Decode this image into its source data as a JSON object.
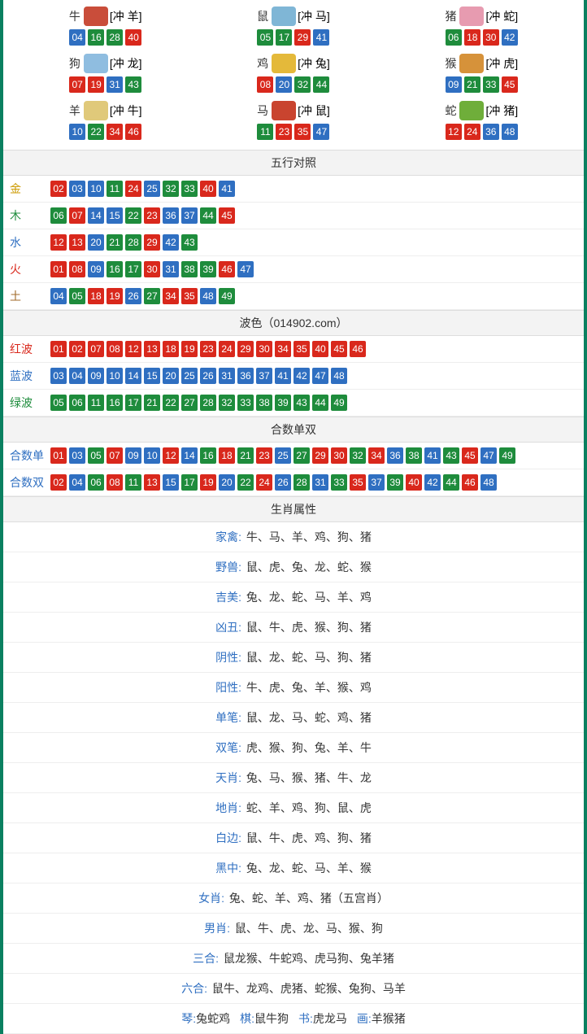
{
  "colors": {
    "border": "#0a8060",
    "red": "#d9281c",
    "blue": "#2f6fc1",
    "green": "#1e8c3c",
    "header_bg": "#f3f3f3"
  },
  "ball_color_map": {
    "01": "red",
    "02": "red",
    "07": "red",
    "08": "red",
    "12": "red",
    "13": "red",
    "18": "red",
    "19": "red",
    "23": "red",
    "24": "red",
    "29": "red",
    "30": "red",
    "34": "red",
    "35": "red",
    "40": "red",
    "45": "red",
    "46": "red",
    "03": "blue",
    "04": "blue",
    "09": "blue",
    "10": "blue",
    "14": "blue",
    "15": "blue",
    "20": "blue",
    "25": "blue",
    "26": "blue",
    "31": "blue",
    "36": "blue",
    "37": "blue",
    "41": "blue",
    "42": "blue",
    "47": "blue",
    "48": "blue",
    "05": "green",
    "06": "green",
    "11": "green",
    "16": "green",
    "17": "green",
    "21": "green",
    "22": "green",
    "27": "green",
    "28": "green",
    "32": "green",
    "33": "green",
    "38": "green",
    "39": "green",
    "43": "green",
    "44": "green",
    "49": "green"
  },
  "zodiac_icons": {
    "牛": "#c94d3a",
    "鼠": "#7fb6d6",
    "猪": "#e79bb0",
    "狗": "#8fbde0",
    "鸡": "#e4b93a",
    "猴": "#d6923a",
    "羊": "#e0c97a",
    "马": "#c9442f",
    "蛇": "#6fae3a"
  },
  "zodiacs": [
    {
      "name": "牛",
      "clash": "[冲 羊]",
      "balls": [
        "04",
        "16",
        "28",
        "40"
      ]
    },
    {
      "name": "鼠",
      "clash": "[冲 马]",
      "balls": [
        "05",
        "17",
        "29",
        "41"
      ]
    },
    {
      "name": "猪",
      "clash": "[冲 蛇]",
      "balls": [
        "06",
        "18",
        "30",
        "42"
      ]
    },
    {
      "name": "狗",
      "clash": "[冲 龙]",
      "balls": [
        "07",
        "19",
        "31",
        "43"
      ]
    },
    {
      "name": "鸡",
      "clash": "[冲 兔]",
      "balls": [
        "08",
        "20",
        "32",
        "44"
      ]
    },
    {
      "name": "猴",
      "clash": "[冲 虎]",
      "balls": [
        "09",
        "21",
        "33",
        "45"
      ]
    },
    {
      "name": "羊",
      "clash": "[冲 牛]",
      "balls": [
        "10",
        "22",
        "34",
        "46"
      ]
    },
    {
      "name": "马",
      "clash": "[冲 鼠]",
      "balls": [
        "11",
        "23",
        "35",
        "47"
      ]
    },
    {
      "name": "蛇",
      "clash": "[冲 猪]",
      "balls": [
        "12",
        "24",
        "36",
        "48"
      ]
    }
  ],
  "wuxing": {
    "title": "五行对照",
    "rows": [
      {
        "key": "金",
        "color": "clr-gold",
        "balls": [
          "02",
          "03",
          "10",
          "11",
          "24",
          "25",
          "32",
          "33",
          "40",
          "41"
        ]
      },
      {
        "key": "木",
        "color": "clr-wood",
        "balls": [
          "06",
          "07",
          "14",
          "15",
          "22",
          "23",
          "36",
          "37",
          "44",
          "45"
        ]
      },
      {
        "key": "水",
        "color": "clr-water",
        "balls": [
          "12",
          "13",
          "20",
          "21",
          "28",
          "29",
          "42",
          "43"
        ]
      },
      {
        "key": "火",
        "color": "clr-fire",
        "balls": [
          "01",
          "08",
          "09",
          "16",
          "17",
          "30",
          "31",
          "38",
          "39",
          "46",
          "47"
        ]
      },
      {
        "key": "土",
        "color": "clr-earth",
        "balls": [
          "04",
          "05",
          "18",
          "19",
          "26",
          "27",
          "34",
          "35",
          "48",
          "49"
        ]
      }
    ]
  },
  "bose": {
    "title": "波色（014902.com）",
    "rows": [
      {
        "key": "红波",
        "color": "clr-red",
        "balls": [
          "01",
          "02",
          "07",
          "08",
          "12",
          "13",
          "18",
          "19",
          "23",
          "24",
          "29",
          "30",
          "34",
          "35",
          "40",
          "45",
          "46"
        ]
      },
      {
        "key": "蓝波",
        "color": "clr-blue",
        "balls": [
          "03",
          "04",
          "09",
          "10",
          "14",
          "15",
          "20",
          "25",
          "26",
          "31",
          "36",
          "37",
          "41",
          "42",
          "47",
          "48"
        ]
      },
      {
        "key": "绿波",
        "color": "clr-green",
        "balls": [
          "05",
          "06",
          "11",
          "16",
          "17",
          "21",
          "22",
          "27",
          "28",
          "32",
          "33",
          "38",
          "39",
          "43",
          "44",
          "49"
        ]
      }
    ]
  },
  "heshudanshuang": {
    "title": "合数单双",
    "rows": [
      {
        "key": "合数单",
        "color": "clr-blue",
        "balls": [
          "01",
          "03",
          "05",
          "07",
          "09",
          "10",
          "12",
          "14",
          "16",
          "18",
          "21",
          "23",
          "25",
          "27",
          "29",
          "30",
          "32",
          "34",
          "36",
          "38",
          "41",
          "43",
          "45",
          "47",
          "49"
        ]
      },
      {
        "key": "合数双",
        "color": "clr-blue",
        "balls": [
          "02",
          "04",
          "06",
          "08",
          "11",
          "13",
          "15",
          "17",
          "19",
          "20",
          "22",
          "24",
          "26",
          "28",
          "31",
          "33",
          "35",
          "37",
          "39",
          "40",
          "42",
          "44",
          "46",
          "48"
        ]
      }
    ]
  },
  "shengxiao_attrs": {
    "title": "生肖属性",
    "rows": [
      {
        "label": "家禽",
        "value": "牛、马、羊、鸡、狗、猪"
      },
      {
        "label": "野兽",
        "value": "鼠、虎、兔、龙、蛇、猴"
      },
      {
        "label": "吉美",
        "value": "兔、龙、蛇、马、羊、鸡"
      },
      {
        "label": "凶丑",
        "value": "鼠、牛、虎、猴、狗、猪"
      },
      {
        "label": "阴性",
        "value": "鼠、龙、蛇、马、狗、猪"
      },
      {
        "label": "阳性",
        "value": "牛、虎、兔、羊、猴、鸡"
      },
      {
        "label": "单笔",
        "value": "鼠、龙、马、蛇、鸡、猪"
      },
      {
        "label": "双笔",
        "value": "虎、猴、狗、兔、羊、牛"
      },
      {
        "label": "天肖",
        "value": "兔、马、猴、猪、牛、龙"
      },
      {
        "label": "地肖",
        "value": "蛇、羊、鸡、狗、鼠、虎"
      },
      {
        "label": "白边",
        "value": "鼠、牛、虎、鸡、狗、猪"
      },
      {
        "label": "黑中",
        "value": "兔、龙、蛇、马、羊、猴"
      },
      {
        "label": "女肖",
        "value": "兔、蛇、羊、鸡、猪（五宫肖）"
      },
      {
        "label": "男肖",
        "value": "鼠、牛、虎、龙、马、猴、狗"
      },
      {
        "label": "三合",
        "value": "鼠龙猴、牛蛇鸡、虎马狗、兔羊猪"
      },
      {
        "label": "六合",
        "value": "鼠牛、龙鸡、虎猪、蛇猴、兔狗、马羊"
      }
    ],
    "multi": [
      {
        "key": "琴",
        "val": "兔蛇鸡"
      },
      {
        "key": "棋",
        "val": "鼠牛狗"
      },
      {
        "key": "书",
        "val": "虎龙马"
      },
      {
        "key": "画",
        "val": "羊猴猪"
      }
    ]
  }
}
